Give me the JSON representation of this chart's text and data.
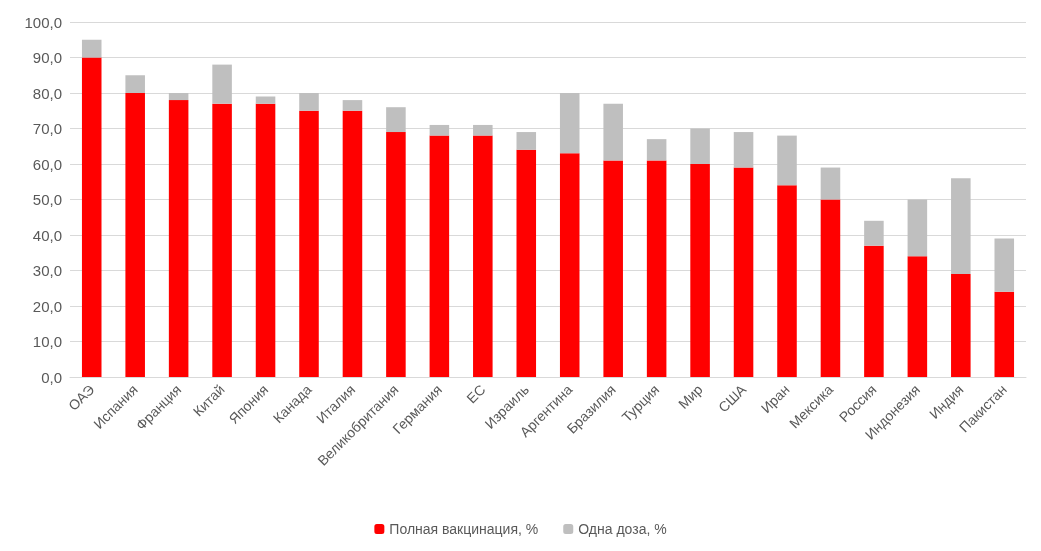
{
  "chart_data": {
    "type": "bar",
    "stacked": true,
    "categories": [
      "ОАЭ",
      "Испания",
      "Франция",
      "Китай",
      "Япония",
      "Канада",
      "Италия",
      "Великобритания",
      "Германия",
      "ЕС",
      "Израиль",
      "Аргентина",
      "Бразилия",
      "Турция",
      "Мир",
      "США",
      "Иран",
      "Мексика",
      "Россия",
      "Индонезия",
      "Индия",
      "Пакистан"
    ],
    "series": [
      {
        "name": "Полная вакцинация, %",
        "color": "#ff0000",
        "values": [
          90,
          80,
          78,
          77,
          77,
          75,
          75,
          69,
          68,
          68,
          64,
          63,
          61,
          61,
          60,
          59,
          54,
          50,
          37,
          34,
          29,
          24
        ]
      },
      {
        "name": "Одна доза, %",
        "color": "#bfbfbf",
        "values": [
          5,
          5,
          2,
          11,
          2,
          5,
          3,
          7,
          3,
          3,
          5,
          17,
          16,
          6,
          10,
          10,
          14,
          9,
          7,
          16,
          27,
          15
        ]
      }
    ],
    "ylim": [
      0,
      100
    ],
    "yticks": [
      {
        "value": 0,
        "label": "0,0"
      },
      {
        "value": 10,
        "label": "10,0"
      },
      {
        "value": 20,
        "label": "20,0"
      },
      {
        "value": 30,
        "label": "30,0"
      },
      {
        "value": 40,
        "label": "40,0"
      },
      {
        "value": 50,
        "label": "50,0"
      },
      {
        "value": 60,
        "label": "60,0"
      },
      {
        "value": 70,
        "label": "70,0"
      },
      {
        "value": 80,
        "label": "80,0"
      },
      {
        "value": 90,
        "label": "90,0"
      },
      {
        "value": 100,
        "label": "100,0"
      }
    ],
    "grid": "y",
    "legend": "bottom"
  }
}
